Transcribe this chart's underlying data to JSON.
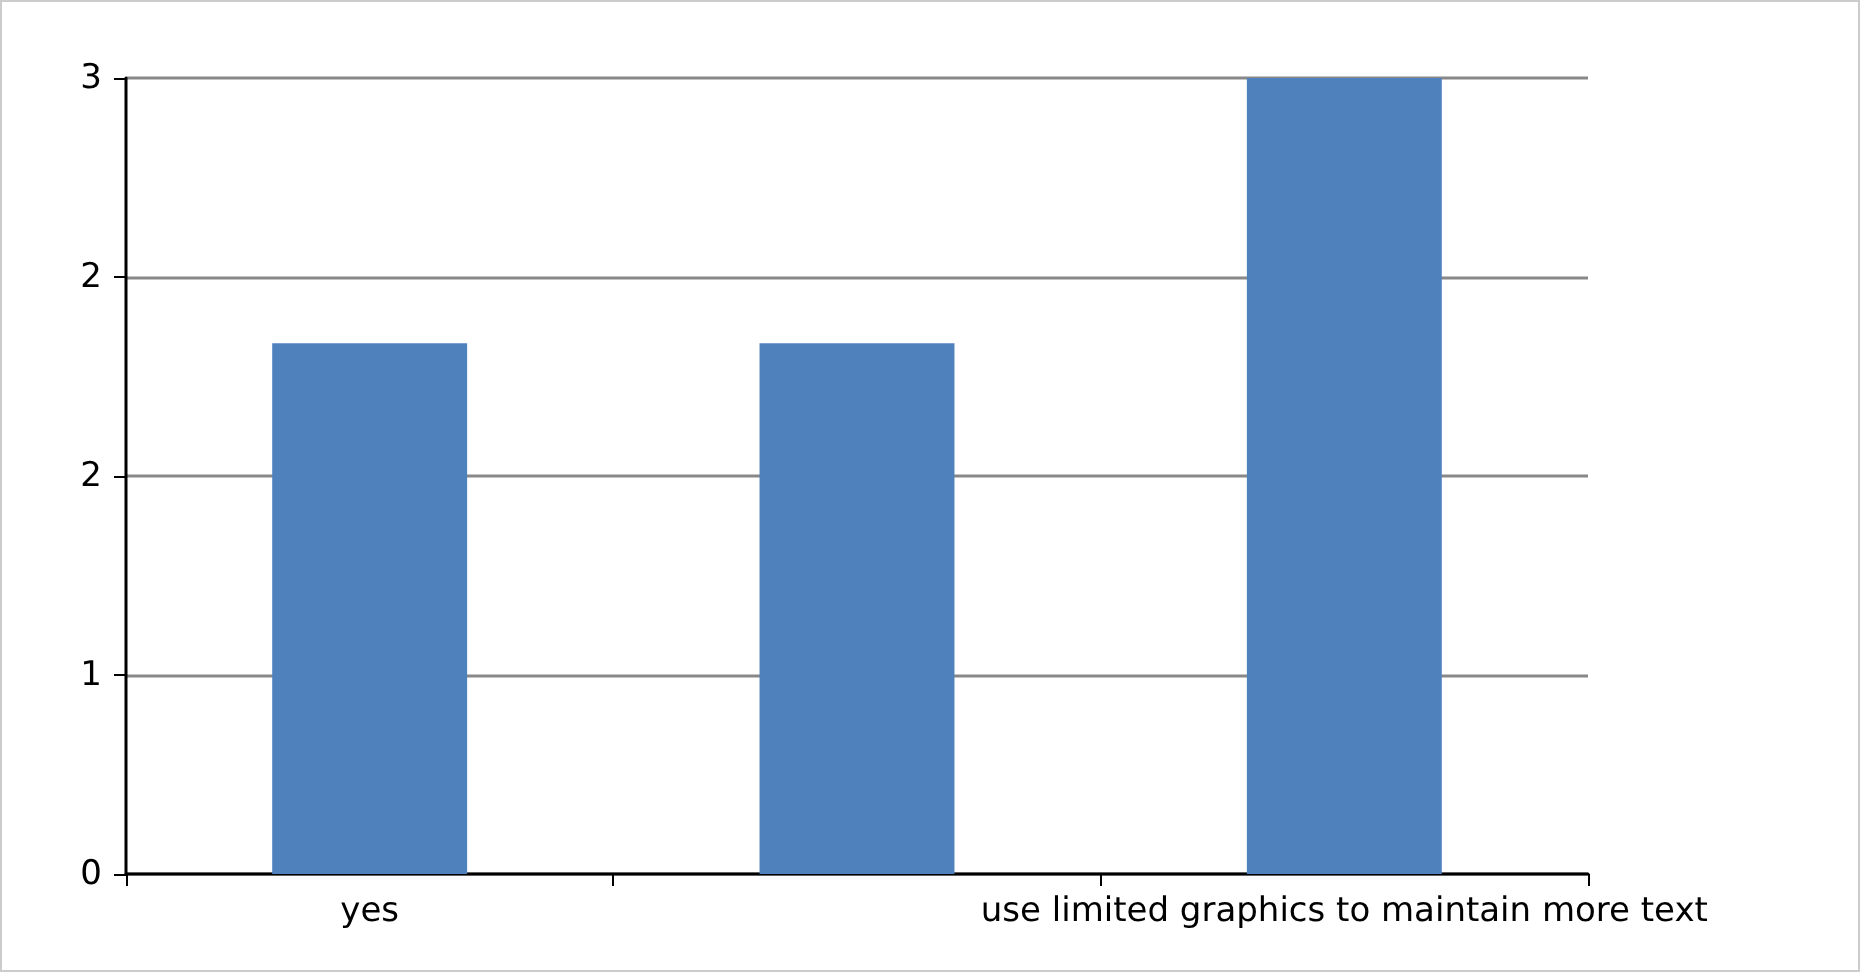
{
  "chart_data": {
    "type": "bar",
    "categories": [
      "yes",
      null,
      "use limited graphics to maintain more text"
    ],
    "values": [
      2,
      2,
      3
    ],
    "color": "#4f81bd",
    "ylim": [
      0,
      3
    ],
    "yticks": [
      0,
      {
        "value": 0.75,
        "label": "1"
      },
      {
        "value": 1.5,
        "label": "2"
      },
      {
        "value": 2.25,
        "label": "2"
      },
      3
    ],
    "grid": "y"
  }
}
